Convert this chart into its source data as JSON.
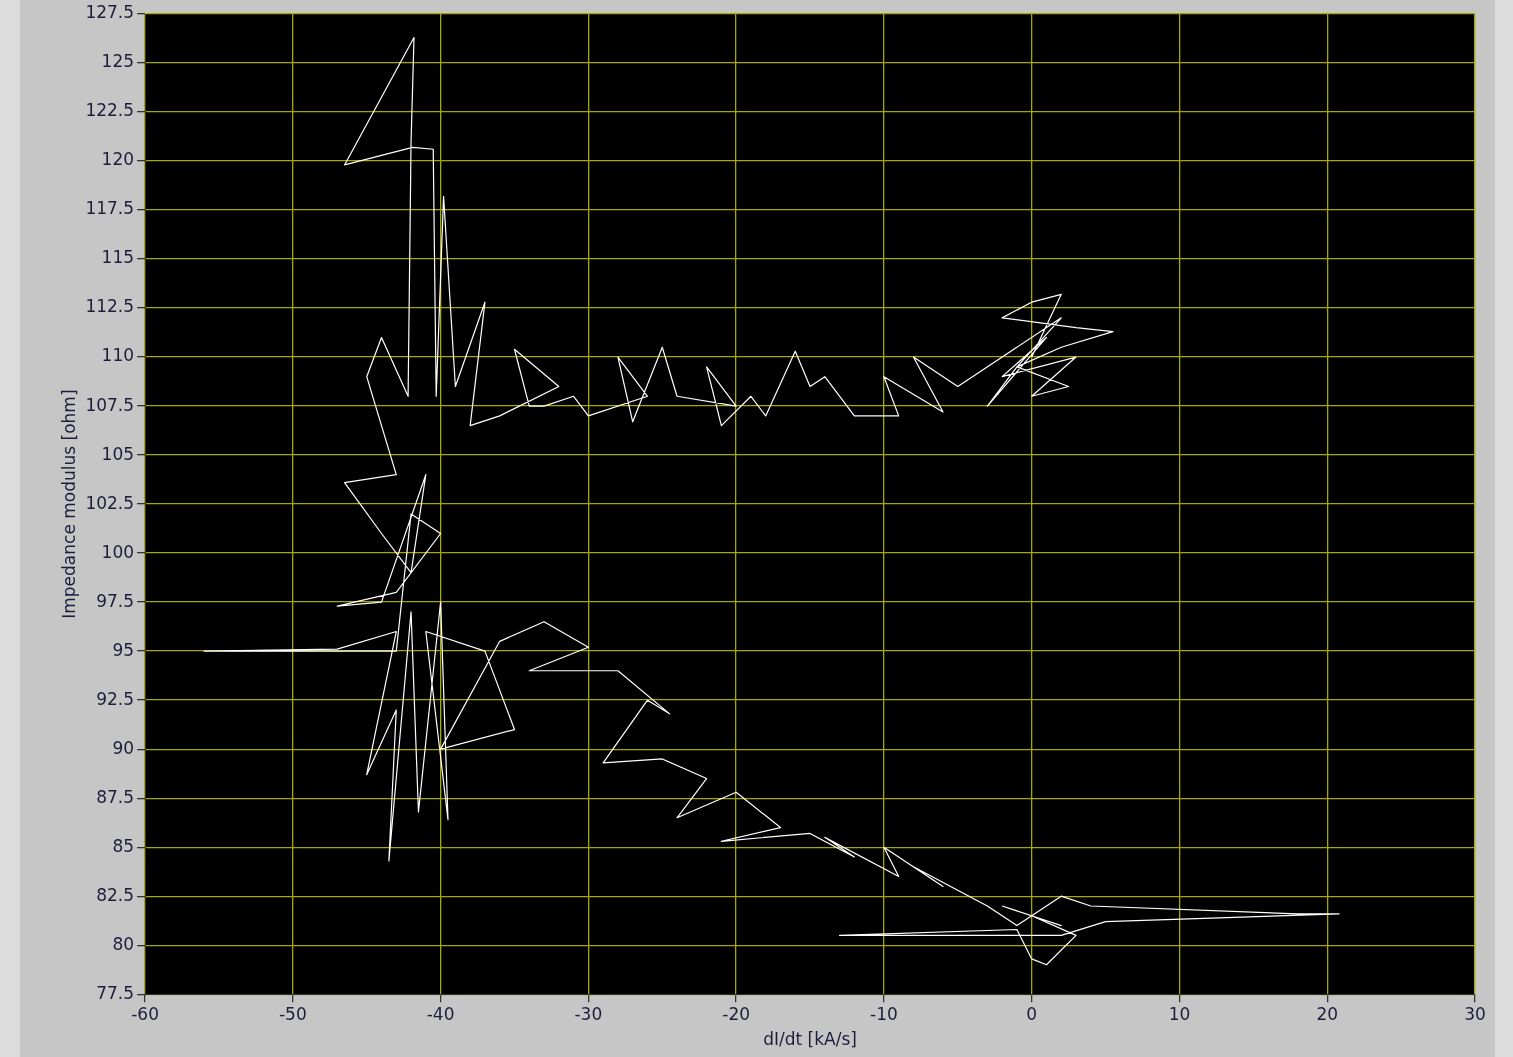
{
  "chart_data": {
    "type": "line",
    "xlabel": "dI/dt [kA/s]",
    "ylabel": "Impedance modulus [ohm]",
    "xlim": [
      -60,
      30
    ],
    "xticks": [
      -60,
      -50,
      -40,
      -30,
      -20,
      -10,
      0,
      10,
      20,
      30
    ],
    "ylim": [
      77.5,
      127.5
    ],
    "yticks": [
      77.5,
      80,
      82.5,
      85,
      87.5,
      90,
      92.5,
      95,
      97.5,
      100,
      102.5,
      105,
      107.5,
      110,
      112.5,
      115,
      117.5,
      120,
      122.5,
      125,
      127.5
    ],
    "grid": true,
    "marker": "none",
    "line_style": "solid",
    "series": [
      {
        "color": "#ffffff",
        "x": [
          0,
          2,
          0,
          -2,
          3,
          5.5,
          2,
          -1,
          2.5,
          0,
          3,
          -2,
          1,
          -3,
          -1,
          2,
          -5,
          -8,
          -6,
          -10,
          -9,
          -12,
          -14,
          -15,
          -16,
          -18,
          -19,
          -21,
          -22,
          -20,
          -24,
          -25,
          -27,
          -28,
          -26,
          -30,
          -31,
          -33,
          -34,
          -35,
          -32,
          -36,
          -38,
          -37,
          -39,
          -39.8,
          -40.3,
          -40.5,
          -41.9,
          -46.5,
          -41.8,
          -42,
          -42.2,
          -44,
          -45,
          -43,
          -46.5,
          -44,
          -42,
          -41,
          -44,
          -47,
          -43,
          -40,
          -42,
          -43,
          -56,
          -47,
          -43,
          -45,
          -43,
          -43.5,
          -42,
          -41.5,
          -40,
          -39.5,
          -41,
          -37,
          -35,
          -40,
          -36,
          -33,
          -30,
          -34,
          -28,
          -24.5,
          -26,
          -29,
          -25,
          -22,
          -24,
          -20,
          -17,
          -21,
          -15,
          -12,
          -14,
          -9,
          -10,
          -6,
          -8,
          -3,
          -1,
          2,
          4,
          18,
          20.8,
          5,
          2,
          -13,
          -1,
          0,
          1,
          3,
          0,
          2,
          -2
        ],
        "values": [
          110,
          113.2,
          112.8,
          112,
          111.5,
          111.3,
          110.5,
          109.5,
          108.5,
          108,
          110,
          109,
          111,
          107.5,
          109.5,
          112,
          108.5,
          110,
          107.2,
          109,
          107,
          107,
          109,
          108.5,
          110.3,
          107,
          108,
          106.5,
          109.5,
          107.5,
          108,
          110.5,
          106.7,
          110,
          108,
          107,
          108,
          107.5,
          107.5,
          110.4,
          108.5,
          107,
          106.5,
          112.8,
          108.5,
          118.2,
          108,
          120.6,
          120.7,
          119.8,
          126.3,
          121,
          108,
          111,
          109,
          104,
          103.6,
          101,
          99,
          104,
          97.5,
          97.3,
          98,
          101,
          102,
          95,
          95,
          95.1,
          96,
          88.7,
          92,
          84.3,
          97,
          86.8,
          97.5,
          86.4,
          96,
          95,
          91,
          90,
          95.5,
          96.5,
          95.2,
          94,
          94,
          91.8,
          92.5,
          89.3,
          89.5,
          88.5,
          86.5,
          87.8,
          86,
          85.3,
          85.7,
          84.5,
          85.5,
          83.5,
          85,
          83,
          84,
          82,
          81,
          82.5,
          82,
          81.6,
          81.6,
          81.2,
          80.5,
          80.5,
          80.8,
          79.3,
          79,
          80.5,
          81.5,
          81,
          82
        ]
      }
    ]
  }
}
